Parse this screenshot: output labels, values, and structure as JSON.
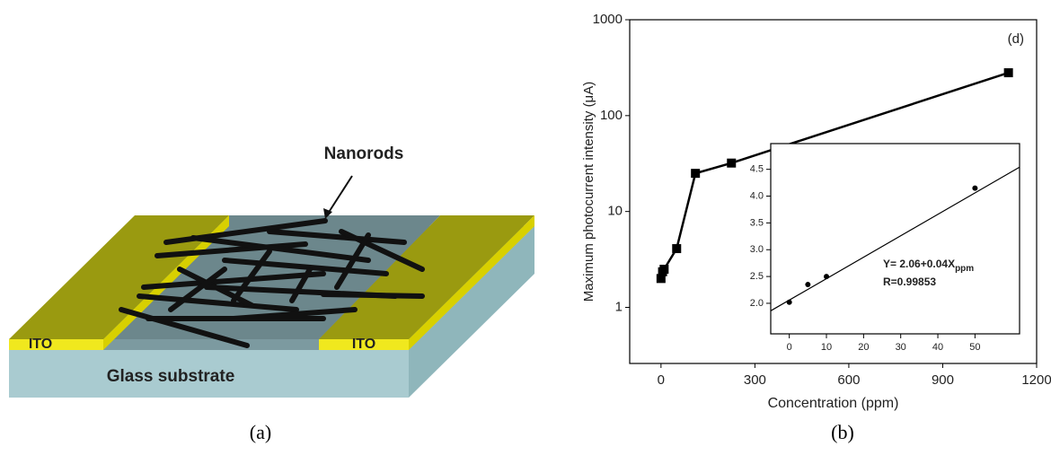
{
  "diagram": {
    "label_nanorods": "Nanorods",
    "label_ito_left": "ITO",
    "label_ito_right": "ITO",
    "label_substrate": "Glass substrate",
    "panel_label": "(a)"
  },
  "panel_b_label": "(b)",
  "chart_data": [
    {
      "type": "line",
      "annotation": "(d)",
      "x_label": "Concentration (ppm)",
      "y_label": "Maximum photocurrent intensity (μA)",
      "y_log": true,
      "xlim": [
        -100,
        1200
      ],
      "ylim": [
        0.26,
        1000
      ],
      "xticks": [
        0,
        300,
        600,
        900,
        1200
      ],
      "yticks": [
        1,
        10,
        100,
        1000
      ],
      "series": [
        {
          "color": "#000000",
          "marker": "square",
          "line": true,
          "x": [
            0,
            5,
            10,
            50,
            110,
            225,
            1110
          ],
          "values": [
            2.0,
            2.35,
            2.5,
            4.1,
            25,
            32,
            280
          ]
        }
      ]
    },
    {
      "type": "line",
      "y_log": false,
      "xlim": [
        -5,
        62
      ],
      "ylim": [
        1.43,
        4.98
      ],
      "xticks": [
        0,
        10,
        20,
        30,
        40,
        50
      ],
      "yticks": [
        {
          "value": 2,
          "label": "2.0"
        },
        {
          "value": 2.5,
          "label": "2.5"
        },
        {
          "value": 3,
          "label": "3.0"
        },
        {
          "value": 3.5,
          "label": "3.5"
        },
        {
          "value": 4,
          "label": "4.0"
        },
        {
          "value": 4.5,
          "label": "4.5"
        }
      ],
      "equation": "Y= 2.06+0.04X",
      "equation_subscript": "ppm",
      "r_text": "R=0.99853",
      "series": [
        {
          "color": "#000000",
          "marker": "circle",
          "line": false,
          "x": [
            0,
            5,
            10,
            50
          ],
          "values": [
            2.02,
            2.35,
            2.5,
            4.15
          ]
        },
        {
          "color": "#000000",
          "marker": null,
          "line": true,
          "x": [
            -5,
            62
          ],
          "values": [
            1.86,
            4.54
          ]
        }
      ]
    }
  ]
}
